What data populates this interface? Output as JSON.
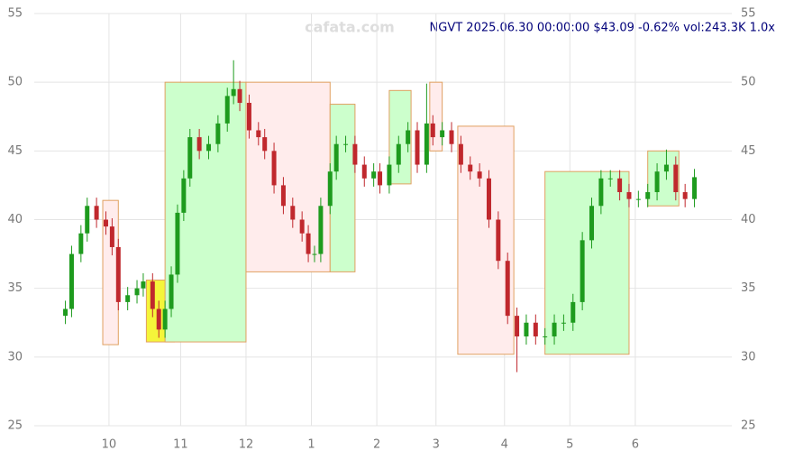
{
  "chart_data": {
    "type": "candlestick",
    "title": "NGVT 2025.06.30 00:00:00 $43.09 -0.62% vol:243.3K 1.0x",
    "watermark": "cafata.com",
    "up_color": "#1e9b1e",
    "down_color": "#c0282d",
    "xlim": [
      -10,
      214
    ],
    "xticks": [
      {
        "value": 14,
        "label": "10"
      },
      {
        "value": 37,
        "label": "11"
      },
      {
        "value": 58,
        "label": "12"
      },
      {
        "value": 79,
        "label": "1"
      },
      {
        "value": 100,
        "label": "2"
      },
      {
        "value": 119,
        "label": "3"
      },
      {
        "value": 141,
        "label": "4"
      },
      {
        "value": 162,
        "label": "5"
      },
      {
        "value": 183,
        "label": "6"
      }
    ],
    "ylim": [
      25,
      55
    ],
    "yticks": [
      25,
      30,
      35,
      40,
      45,
      50,
      55
    ],
    "grid": true,
    "x": [
      0,
      2,
      5,
      7,
      10,
      13,
      15,
      17,
      20,
      23,
      25,
      28,
      30,
      32,
      34,
      36,
      38,
      40,
      43,
      46,
      49,
      52,
      54,
      56,
      59,
      62,
      64,
      67,
      70,
      73,
      76,
      78,
      80,
      82,
      85,
      87,
      90,
      93,
      96,
      99,
      101,
      104,
      107,
      110,
      113,
      116,
      118,
      121,
      124,
      127,
      130,
      133,
      136,
      139,
      142,
      145,
      148,
      151,
      154,
      157,
      160,
      163,
      166,
      169,
      172,
      175,
      178,
      181,
      184,
      187,
      190,
      193,
      196,
      199,
      202
    ],
    "open": [
      33,
      33.5,
      37.5,
      39,
      41,
      40,
      39.5,
      38,
      34,
      34.5,
      35,
      35.5,
      33.5,
      32,
      33.5,
      36,
      40.5,
      43,
      46,
      45,
      45.5,
      47,
      49,
      49.5,
      48.5,
      46.5,
      46,
      45,
      42.5,
      41,
      40,
      39,
      37.5,
      37.5,
      41,
      43.5,
      45.5,
      45.5,
      44,
      43,
      43.5,
      42.5,
      44,
      45.5,
      46.5,
      44,
      47,
      46,
      46.5,
      45.5,
      44,
      43.5,
      43,
      40,
      37,
      33,
      31.5,
      32.5,
      31.5,
      31.5,
      32.5,
      32.5,
      34,
      38.5,
      41,
      43,
      43,
      42,
      41.5,
      41.5,
      42,
      43.5,
      44,
      42,
      41.5
    ],
    "high": [
      34.1,
      38.1,
      39.6,
      41.6,
      41.6,
      40.6,
      40.1,
      38.6,
      35.1,
      35.6,
      36.1,
      36.1,
      34.1,
      34.1,
      36.6,
      41.1,
      43.6,
      46.6,
      46.6,
      46.1,
      47.6,
      49.6,
      51.6,
      50.1,
      49.1,
      47.1,
      46.6,
      45.6,
      43.1,
      41.6,
      40.6,
      39.6,
      38.1,
      41.6,
      44.1,
      46.1,
      46.1,
      46.1,
      44.6,
      44.1,
      44.1,
      44.6,
      46.1,
      47.1,
      47.1,
      49.9,
      47.6,
      47.1,
      47.1,
      46.1,
      44.6,
      44.1,
      43.6,
      40.6,
      37.6,
      33.6,
      33.1,
      33.1,
      32.1,
      33.1,
      33.1,
      34.6,
      39.1,
      41.6,
      43.6,
      43.6,
      43.6,
      42.6,
      42.1,
      42.6,
      44.1,
      45.1,
      44.6,
      42.6,
      43.69
    ],
    "low": [
      32.4,
      32.9,
      36.9,
      38.4,
      39.4,
      38.9,
      37.4,
      33.4,
      33.4,
      33.9,
      34.4,
      32.9,
      31.4,
      31.4,
      32.9,
      35.4,
      39.9,
      42.4,
      44.4,
      44.4,
      44.9,
      46.4,
      48.4,
      47.9,
      45.9,
      45.4,
      44.4,
      41.9,
      40.4,
      39.4,
      38.4,
      36.9,
      36.9,
      36.9,
      40.4,
      42.9,
      44.9,
      43.4,
      42.4,
      42.4,
      41.9,
      41.9,
      43.4,
      44.9,
      43.4,
      43.4,
      45.4,
      45.4,
      44.9,
      43.4,
      42.9,
      42.4,
      39.4,
      36.4,
      32.4,
      28.9,
      30.9,
      30.9,
      30.9,
      30.9,
      31.9,
      31.9,
      33.4,
      37.9,
      40.4,
      42.4,
      41.4,
      40.9,
      40.9,
      40.9,
      41.4,
      42.9,
      41.4,
      40.9,
      40.9
    ],
    "close": [
      33.5,
      37.5,
      39,
      41,
      40,
      39.5,
      38,
      34,
      34.5,
      35,
      35.5,
      33.5,
      32,
      33.5,
      36,
      40.5,
      43,
      46,
      45,
      45.5,
      47,
      49,
      49.5,
      48.5,
      46.5,
      46,
      45,
      42.5,
      41,
      40,
      39,
      37.5,
      37.5,
      41,
      43.5,
      45.5,
      45.5,
      44,
      43,
      43.5,
      42.5,
      44,
      45.5,
      46.5,
      44,
      47,
      46,
      46.5,
      45.5,
      44,
      43.5,
      43,
      40,
      37,
      33,
      31.5,
      32.5,
      31.5,
      31.5,
      32.5,
      32.5,
      34,
      38.5,
      41,
      43,
      43,
      42,
      41.5,
      41.5,
      42,
      43.5,
      44,
      42,
      41.5,
      43.09
    ],
    "zones": [
      {
        "x": [
          12,
          17
        ],
        "y": [
          30.9,
          41.4
        ],
        "color": "#ffecec"
      },
      {
        "x": [
          26,
          35
        ],
        "y": [
          31.1,
          35.6
        ],
        "color": "#f5f53a"
      },
      {
        "x": [
          32,
          58
        ],
        "y": [
          31.1,
          50
        ],
        "color": "#ccffcc"
      },
      {
        "x": [
          58,
          85
        ],
        "y": [
          36.2,
          50
        ],
        "color": "#ffecec"
      },
      {
        "x": [
          85,
          93
        ],
        "y": [
          36.2,
          48.4
        ],
        "color": "#ccffcc"
      },
      {
        "x": [
          104,
          111
        ],
        "y": [
          42.6,
          49.4
        ],
        "color": "#ccffcc"
      },
      {
        "x": [
          117,
          121
        ],
        "y": [
          45,
          50
        ],
        "color": "#ffecec"
      },
      {
        "x": [
          126,
          144
        ],
        "y": [
          30.2,
          46.8
        ],
        "color": "#ffecec"
      },
      {
        "x": [
          154,
          181
        ],
        "y": [
          30.2,
          43.5
        ],
        "color": "#ccffcc"
      },
      {
        "x": [
          187,
          197
        ],
        "y": [
          41,
          45
        ],
        "color": "#ccffcc"
      }
    ]
  }
}
